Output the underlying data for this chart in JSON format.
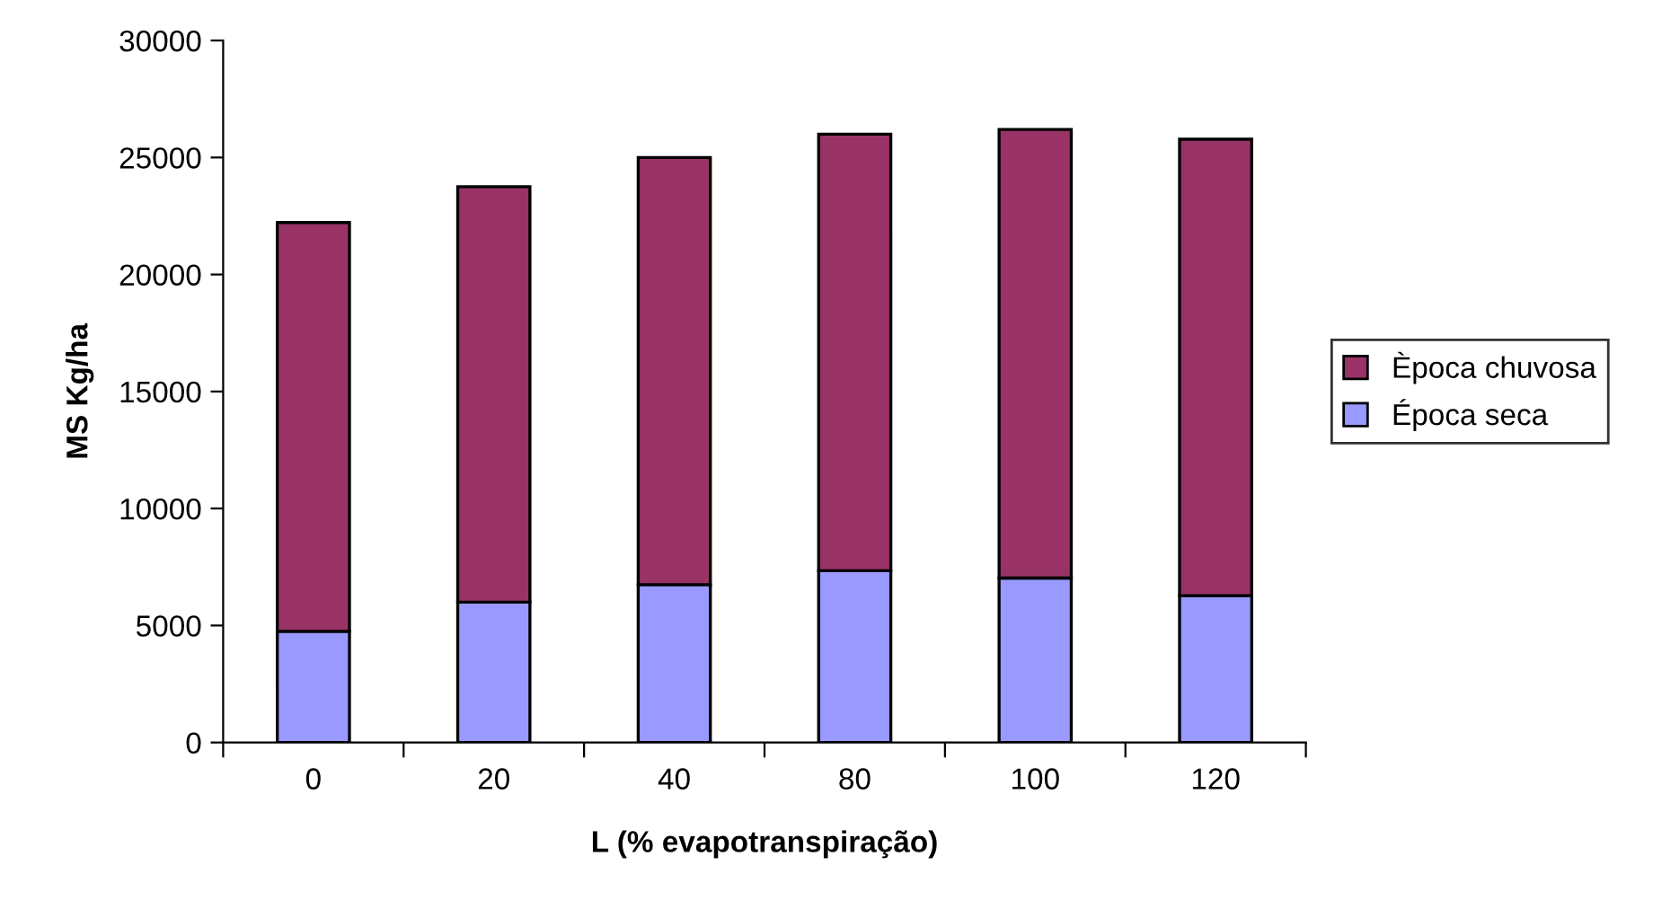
{
  "chart_data": {
    "type": "bar",
    "stacked": true,
    "xlabel": "L (% evapotranspiração)",
    "ylabel": "MS Kg/ha",
    "categories": [
      "0",
      "20",
      "40",
      "80",
      "100",
      "120"
    ],
    "series": [
      {
        "name": "Época seca",
        "color": "#9999ff",
        "values": [
          4750,
          6000,
          6750,
          7340,
          7030,
          6280
        ]
      },
      {
        "name": "Època chuvosa",
        "color": "#993366",
        "values": [
          17470,
          17750,
          18250,
          18660,
          19170,
          19500
        ]
      }
    ],
    "ylim": [
      0,
      30000
    ],
    "yticks": [
      0,
      5000,
      10000,
      15000,
      20000,
      25000,
      30000
    ],
    "grid": false,
    "legend": "right"
  }
}
